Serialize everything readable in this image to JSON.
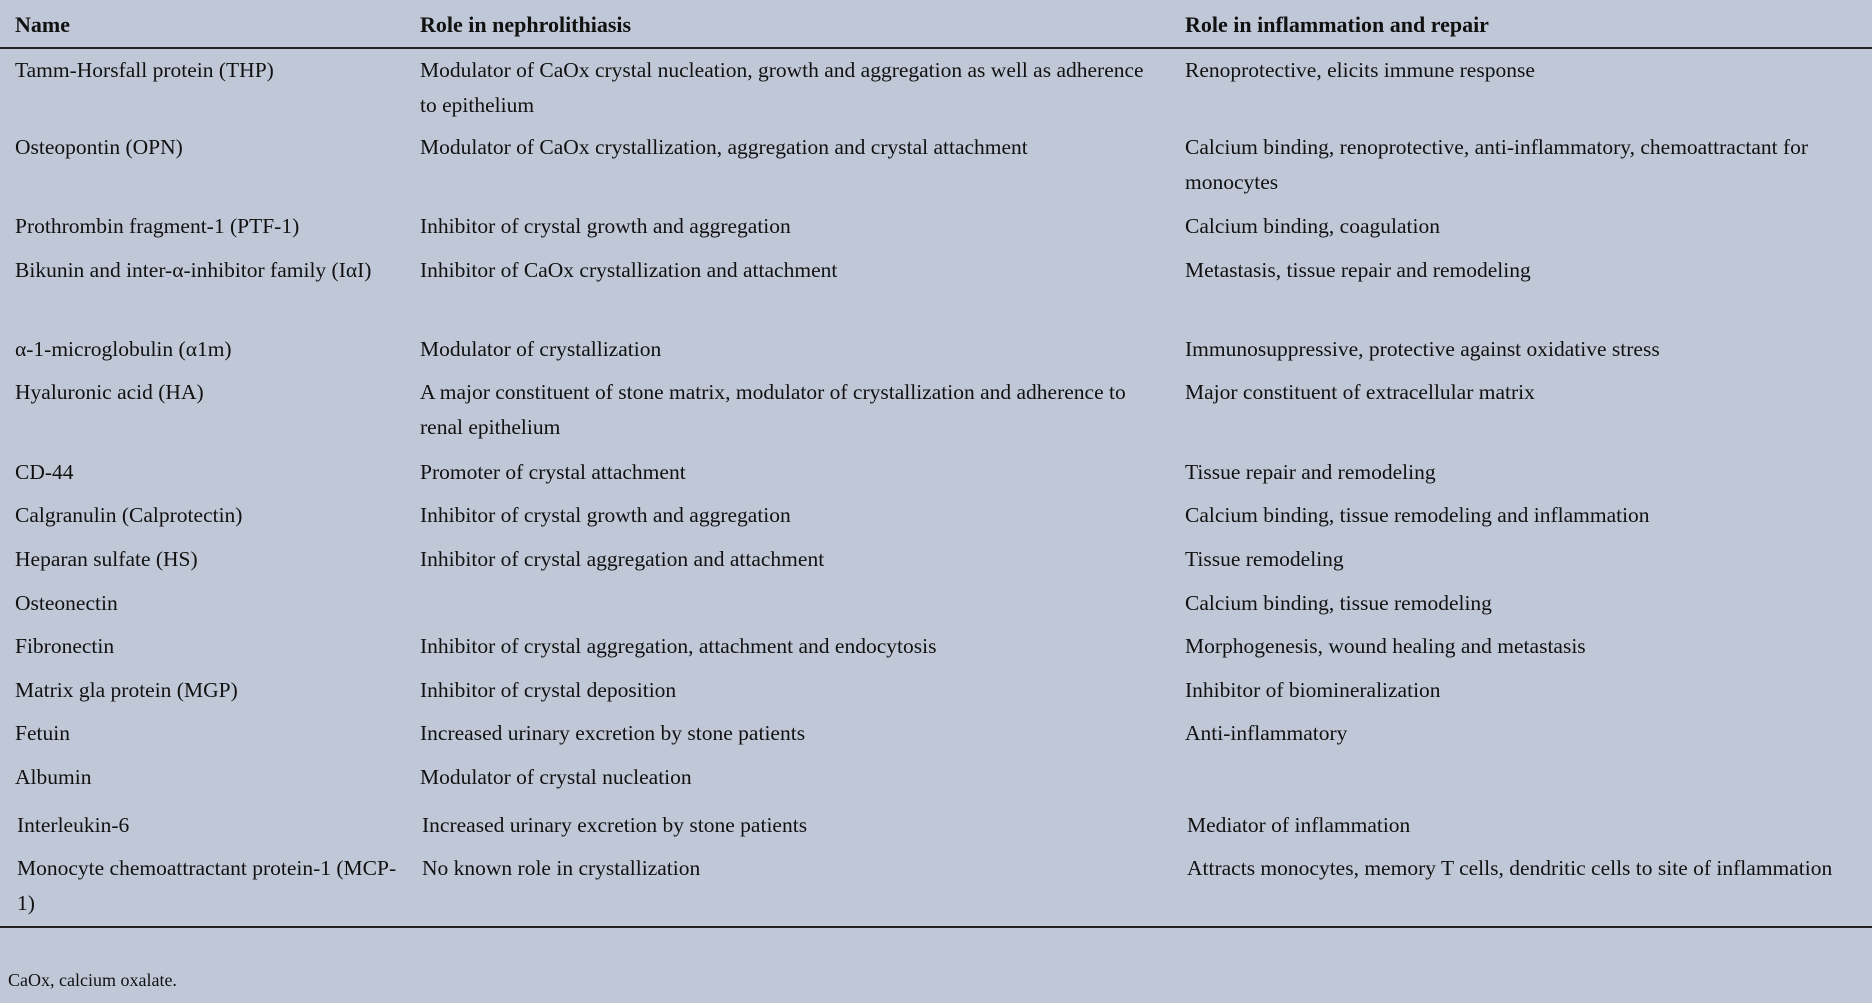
{
  "table": {
    "headers": [
      "Name",
      "Role in nephrolithiasis",
      "Role in inflammation and repair"
    ],
    "rows": [
      [
        "Tamm-Horsfall protein (THP)",
        "Modulator of CaOx crystal nucleation, growth and aggregation as well as adherence to epithelium",
        "Renoprotective, elicits immune response"
      ],
      [
        "Osteopontin (OPN)",
        "Modulator of CaOx crystallization, aggregation and crystal attachment",
        "Calcium binding, renoprotective, anti-inflammatory, chemoattractant for monocytes"
      ],
      [
        "Prothrombin fragment-1 (PTF-1)",
        "Inhibitor of crystal growth and aggregation",
        "Calcium binding, coagulation"
      ],
      [
        "Bikunin and inter-α-inhibitor family (IαI)",
        "Inhibitor of CaOx crystallization and attachment",
        "Metastasis, tissue repair and remodeling"
      ],
      [
        "α-1-microglobulin (α1m)",
        "Modulator of crystallization",
        "Immunosuppressive, protective against oxidative stress"
      ],
      [
        "Hyaluronic acid (HA)",
        "A major constituent of stone matrix, modulator of crystallization and adherence to renal epithelium",
        "Major constituent of extracellular matrix"
      ],
      [
        "CD-44",
        "Promoter of crystal attachment",
        "Tissue repair and remodeling"
      ],
      [
        "Calgranulin (Calprotectin)",
        "Inhibitor of crystal growth and aggregation",
        "Calcium binding, tissue remodeling and inflammation"
      ],
      [
        "Heparan sulfate (HS)",
        "Inhibitor of crystal aggregation and attachment",
        "Tissue remodeling"
      ],
      [
        "Osteonectin",
        "",
        "Calcium binding, tissue remodeling"
      ],
      [
        "Fibronectin",
        "Inhibitor of crystal aggregation, attachment and endocytosis",
        "Morphogenesis, wound healing and metastasis"
      ],
      [
        "Matrix gla protein (MGP)",
        "Inhibitor of crystal deposition",
        "Inhibitor of biomineralization"
      ],
      [
        "Fetuin",
        "Increased urinary excretion by stone patients",
        "Anti-inflammatory"
      ],
      [
        "Albumin",
        "Modulator of crystal nucleation",
        ""
      ],
      [
        "Interleukin-6",
        "Increased urinary excretion by stone patients",
        "Mediator of inflammation"
      ],
      [
        "Monocyte chemoattractant protein-1 (MCP-1)",
        "No known role in crystallization",
        "Attracts monocytes, memory T cells, dendritic cells to site of inflammation"
      ]
    ]
  },
  "footnote": "CaOx, calcium oxalate."
}
